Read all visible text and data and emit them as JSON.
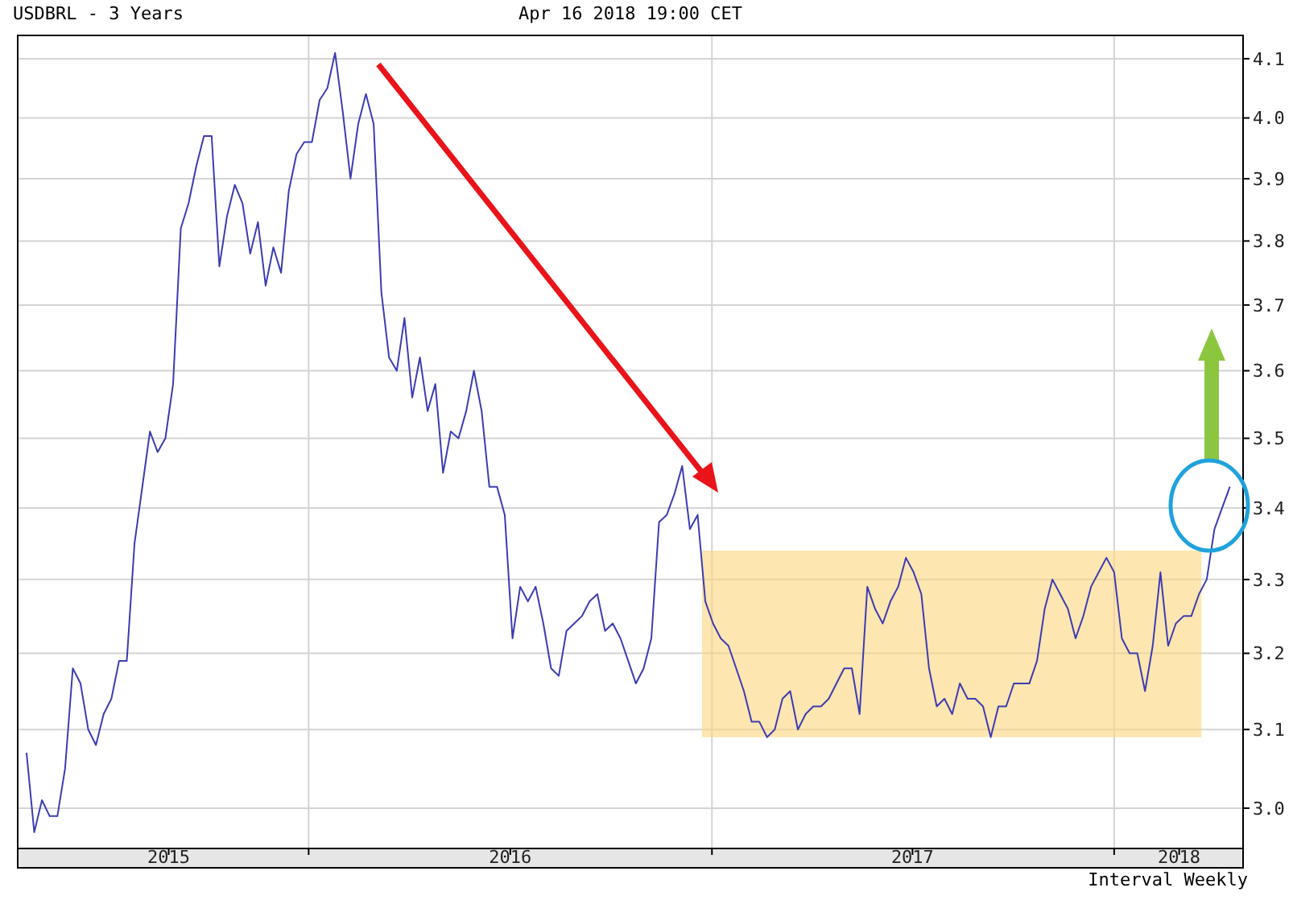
{
  "chart_data": {
    "type": "line",
    "title": "USDBRL - 3 Years",
    "subtitle": "Apr 16 2018 19:00 CET",
    "annotations": [
      "Interval Weekly"
    ],
    "series": [
      {
        "color": "#3c3cb4",
        "x": [
          "2015-04-20",
          "2015-04-27",
          "2015-05-04",
          "2015-05-11",
          "2015-05-18",
          "2015-05-25",
          "2015-06-01",
          "2015-06-08",
          "2015-06-15",
          "2015-06-22",
          "2015-06-29",
          "2015-07-06",
          "2015-07-13",
          "2015-07-20",
          "2015-07-27",
          "2015-08-10",
          "2015-08-17",
          "2015-08-24",
          "2015-08-31",
          "2015-09-07",
          "2015-09-14",
          "2015-09-21",
          "2015-09-28",
          "2015-10-05",
          "2015-10-12",
          "2015-10-19",
          "2015-10-26",
          "2015-11-02",
          "2015-11-09",
          "2015-11-16",
          "2015-11-23",
          "2015-11-30",
          "2015-12-07",
          "2015-12-14",
          "2015-12-21",
          "2015-12-28",
          "2016-01-04",
          "2016-01-11",
          "2016-01-18",
          "2016-01-25",
          "2016-02-01",
          "2016-02-08",
          "2016-02-15",
          "2016-02-22",
          "2016-02-29",
          "2016-03-07",
          "2016-03-14",
          "2016-03-21",
          "2016-03-28",
          "2016-04-04",
          "2016-04-11",
          "2016-04-18",
          "2016-04-25",
          "2016-05-02",
          "2016-05-09",
          "2016-05-16",
          "2016-05-23",
          "2016-05-30",
          "2016-06-06",
          "2016-06-13",
          "2016-06-20",
          "2016-06-27",
          "2016-07-04",
          "2016-07-11",
          "2016-07-18",
          "2016-07-25",
          "2016-08-01",
          "2016-08-08",
          "2016-08-15",
          "2016-08-22",
          "2016-08-29",
          "2016-09-05",
          "2016-09-12",
          "2016-09-19",
          "2016-09-26",
          "2016-10-03",
          "2016-10-10",
          "2016-10-17",
          "2016-10-24",
          "2016-10-31",
          "2016-11-07",
          "2016-11-14",
          "2016-11-21",
          "2016-11-28",
          "2016-12-05",
          "2016-12-12",
          "2016-12-19",
          "2016-12-26",
          "2017-01-02",
          "2017-01-09",
          "2017-01-16",
          "2017-01-23",
          "2017-01-30",
          "2017-02-06",
          "2017-02-13",
          "2017-02-20",
          "2017-02-27",
          "2017-03-06",
          "2017-03-13",
          "2017-03-20",
          "2017-03-27",
          "2017-04-03",
          "2017-04-10",
          "2017-04-17",
          "2017-04-24",
          "2017-05-01",
          "2017-05-08",
          "2017-05-15",
          "2017-05-22",
          "2017-05-29",
          "2017-06-05",
          "2017-06-12",
          "2017-06-19",
          "2017-06-26",
          "2017-07-03",
          "2017-07-10",
          "2017-07-17",
          "2017-07-24",
          "2017-07-31",
          "2017-08-07",
          "2017-08-14",
          "2017-08-21",
          "2017-08-28",
          "2017-09-04",
          "2017-09-11",
          "2017-09-18",
          "2017-09-25",
          "2017-10-02",
          "2017-10-09",
          "2017-10-16",
          "2017-10-23",
          "2017-10-30",
          "2017-11-06",
          "2017-11-13",
          "2017-11-20",
          "2017-11-27",
          "2017-12-04",
          "2017-12-11",
          "2017-12-18",
          "2017-12-25",
          "2018-01-01",
          "2018-01-08",
          "2018-01-15",
          "2018-01-22",
          "2018-01-29",
          "2018-02-05",
          "2018-02-12",
          "2018-02-19",
          "2018-02-26",
          "2018-03-05",
          "2018-03-12",
          "2018-03-19",
          "2018-03-26",
          "2018-04-02",
          "2018-04-09",
          "2018-04-16"
        ],
        "values": [
          3.07,
          2.97,
          3.01,
          2.99,
          2.99,
          3.05,
          3.18,
          3.16,
          3.1,
          3.08,
          3.12,
          3.14,
          3.19,
          3.19,
          3.35,
          3.51,
          3.48,
          3.5,
          3.58,
          3.82,
          3.86,
          3.92,
          3.97,
          3.97,
          3.76,
          3.84,
          3.89,
          3.86,
          3.78,
          3.83,
          3.73,
          3.79,
          3.75,
          3.88,
          3.94,
          3.96,
          3.96,
          4.03,
          4.05,
          4.11,
          4.01,
          3.9,
          3.99,
          4.04,
          3.99,
          3.72,
          3.62,
          3.6,
          3.68,
          3.56,
          3.62,
          3.54,
          3.58,
          3.45,
          3.51,
          3.5,
          3.54,
          3.6,
          3.54,
          3.43,
          3.43,
          3.39,
          3.22,
          3.29,
          3.27,
          3.29,
          3.24,
          3.18,
          3.17,
          3.23,
          3.24,
          3.25,
          3.27,
          3.28,
          3.23,
          3.24,
          3.22,
          3.19,
          3.16,
          3.18,
          3.22,
          3.38,
          3.39,
          3.42,
          3.46,
          3.37,
          3.39,
          3.27,
          3.24,
          3.22,
          3.21,
          3.18,
          3.15,
          3.11,
          3.11,
          3.09,
          3.1,
          3.14,
          3.15,
          3.1,
          3.12,
          3.13,
          3.13,
          3.14,
          3.16,
          3.18,
          3.18,
          3.12,
          3.29,
          3.26,
          3.24,
          3.27,
          3.29,
          3.33,
          3.31,
          3.28,
          3.18,
          3.13,
          3.14,
          3.12,
          3.16,
          3.14,
          3.14,
          3.13,
          3.09,
          3.13,
          3.13,
          3.16,
          3.16,
          3.16,
          3.19,
          3.26,
          3.3,
          3.28,
          3.26,
          3.22,
          3.25,
          3.29,
          3.31,
          3.33,
          3.31,
          3.22,
          3.2,
          3.2,
          3.15,
          3.21,
          3.31,
          3.21,
          3.24,
          3.25,
          3.25,
          3.28,
          3.3,
          3.37,
          3.4,
          3.43
        ]
      }
    ],
    "xlim": [
      "2015-04-12",
      "2018-04-28"
    ],
    "xticks": [
      {
        "value": "2015-08-27",
        "label": "2015"
      },
      {
        "value": "2016-01-01",
        "label": null
      },
      {
        "value": "2016-07-02",
        "label": "2016"
      },
      {
        "value": "2017-01-01",
        "label": null
      },
      {
        "value": "2017-07-02",
        "label": "2017"
      },
      {
        "value": "2018-01-01",
        "label": null
      },
      {
        "value": "2018-03-01",
        "label": "2018"
      }
    ],
    "ylim": [
      2.95,
      4.14
    ],
    "yticks": [
      {
        "value": 3,
        "label": "3.0"
      },
      3.1,
      3.2,
      3.3,
      3.4,
      3.5,
      3.6,
      3.7,
      3.8,
      3.9,
      {
        "value": 4,
        "label": "4.0"
      },
      4.1
    ],
    "log": true,
    "grid": true,
    "bands": [
      {
        "axis": "y",
        "from": 3.09,
        "to": 3.34,
        "color": "#fcd67a"
      }
    ]
  }
}
